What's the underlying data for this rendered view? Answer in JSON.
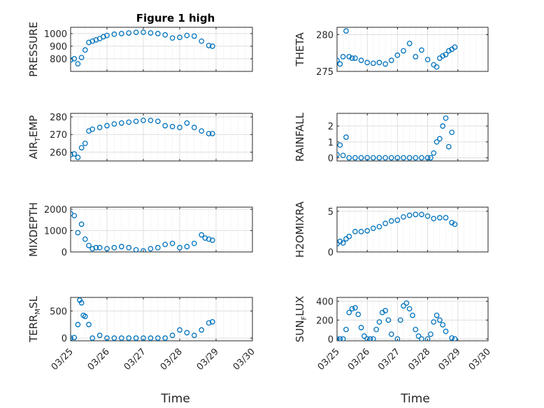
{
  "figure": {
    "title": "Figure 1 high",
    "xlabel": "Time",
    "marker_color": "#0072bd",
    "axes_color": "#262626",
    "grid_color": "#dfdfdf"
  },
  "chart_data": [
    {
      "type": "scatter",
      "ylabel": "PRESSURE",
      "xlim": [
        "03/25",
        "03/30"
      ],
      "xticks": [
        "03/25",
        "03/26",
        "03/27",
        "03/28",
        "03/29",
        "03/30"
      ],
      "ylim": [
        700,
        1050
      ],
      "yticks": [
        800,
        900,
        1000
      ],
      "x_days": [
        0.0,
        0.1,
        0.2,
        0.3,
        0.4,
        0.5,
        0.6,
        0.7,
        0.8,
        0.9,
        1.0,
        1.2,
        1.4,
        1.6,
        1.8,
        2.0,
        2.2,
        2.4,
        2.6,
        2.8,
        3.0,
        3.2,
        3.4,
        3.6,
        3.8,
        3.9
      ],
      "y": [
        790,
        800,
        760,
        810,
        870,
        930,
        940,
        950,
        960,
        975,
        985,
        995,
        1000,
        1005,
        1010,
        1010,
        1005,
        1000,
        990,
        965,
        970,
        985,
        980,
        940,
        905,
        900
      ]
    },
    {
      "type": "scatter",
      "ylabel": "THETA",
      "xlim": [
        "03/25",
        "03/30"
      ],
      "xticks": [
        "03/25",
        "03/26",
        "03/27",
        "03/28",
        "03/29",
        "03/30"
      ],
      "ylim": [
        275,
        281
      ],
      "yticks": [
        275,
        280
      ],
      "x_days": [
        0.0,
        0.1,
        0.2,
        0.3,
        0.4,
        0.5,
        0.6,
        0.8,
        1.0,
        1.2,
        1.4,
        1.6,
        1.8,
        2.0,
        2.2,
        2.4,
        2.6,
        2.8,
        3.0,
        3.2,
        3.3,
        3.4,
        3.5,
        3.6,
        3.7,
        3.8,
        3.9
      ],
      "y": [
        276.5,
        276.0,
        277.0,
        280.5,
        277.0,
        276.8,
        276.8,
        276.5,
        276.2,
        276.1,
        276.2,
        276.0,
        276.5,
        277.2,
        277.8,
        278.8,
        277.0,
        277.9,
        276.6,
        275.9,
        275.6,
        276.8,
        277.1,
        277.3,
        277.8,
        278.0,
        278.3
      ]
    },
    {
      "type": "scatter",
      "ylabel": "AIR",
      "ylabel_sub": "T",
      "ylabel_suffix": "EMP",
      "xlim": [
        "03/25",
        "03/30"
      ],
      "xticks": [
        "03/25",
        "03/26",
        "03/27",
        "03/28",
        "03/29",
        "03/30"
      ],
      "ylim": [
        255,
        282
      ],
      "yticks": [
        260,
        270,
        280
      ],
      "x_days": [
        0.0,
        0.1,
        0.2,
        0.3,
        0.4,
        0.5,
        0.6,
        0.8,
        1.0,
        1.2,
        1.4,
        1.6,
        1.8,
        2.0,
        2.2,
        2.4,
        2.6,
        2.8,
        3.0,
        3.2,
        3.4,
        3.6,
        3.8,
        3.9
      ],
      "y": [
        258.5,
        259.0,
        257.0,
        262.5,
        265.0,
        272.0,
        273.0,
        274.0,
        275.0,
        276.0,
        276.5,
        277.0,
        277.5,
        278.0,
        278.0,
        277.5,
        275.0,
        274.5,
        274.0,
        276.5,
        274.0,
        272.0,
        270.5,
        270.5
      ]
    },
    {
      "type": "scatter",
      "ylabel": "RAINFALL",
      "xlim": [
        "03/25",
        "03/30"
      ],
      "xticks": [
        "03/25",
        "03/26",
        "03/27",
        "03/28",
        "03/29",
        "03/30"
      ],
      "ylim": [
        -0.2,
        2.8
      ],
      "yticks": [
        0,
        1,
        2
      ],
      "x_days": [
        0.0,
        0.1,
        0.2,
        0.3,
        0.4,
        0.6,
        0.8,
        1.0,
        1.2,
        1.4,
        1.6,
        1.8,
        2.0,
        2.2,
        2.4,
        2.6,
        2.8,
        3.0,
        3.1,
        3.2,
        3.3,
        3.4,
        3.5,
        3.6,
        3.7,
        3.8
      ],
      "y": [
        0.2,
        0.8,
        0.15,
        1.3,
        0.0,
        0.0,
        0.0,
        0.0,
        0.0,
        0.0,
        0.0,
        0.0,
        0.0,
        0.0,
        0.0,
        0.0,
        0.0,
        0.0,
        0.0,
        0.3,
        1.0,
        1.2,
        2.0,
        2.5,
        0.7,
        1.6
      ]
    },
    {
      "type": "scatter",
      "ylabel": "MIXDEPTH",
      "xlim": [
        "03/25",
        "03/30"
      ],
      "xticks": [
        "03/25",
        "03/26",
        "03/27",
        "03/28",
        "03/29",
        "03/30"
      ],
      "ylim": [
        0,
        2100
      ],
      "yticks": [
        0,
        1000,
        2000
      ],
      "x_days": [
        0.0,
        0.1,
        0.2,
        0.3,
        0.4,
        0.5,
        0.6,
        0.7,
        0.8,
        1.0,
        1.2,
        1.4,
        1.6,
        1.8,
        2.0,
        2.2,
        2.4,
        2.6,
        2.8,
        3.0,
        3.2,
        3.4,
        3.6,
        3.7,
        3.8,
        3.9
      ],
      "y": [
        1800,
        1700,
        900,
        1300,
        600,
        300,
        150,
        200,
        200,
        150,
        200,
        250,
        200,
        100,
        50,
        150,
        200,
        350,
        400,
        200,
        250,
        400,
        800,
        650,
        600,
        550
      ]
    },
    {
      "type": "scatter",
      "ylabel": "H2OMIXRA",
      "xlim": [
        "03/25",
        "03/30"
      ],
      "xticks": [
        "03/25",
        "03/26",
        "03/27",
        "03/28",
        "03/29",
        "03/30"
      ],
      "ylim": [
        0,
        5.5
      ],
      "yticks": [
        0,
        5
      ],
      "x_days": [
        0.0,
        0.1,
        0.2,
        0.3,
        0.4,
        0.6,
        0.8,
        1.0,
        1.2,
        1.4,
        1.6,
        1.8,
        2.0,
        2.2,
        2.4,
        2.6,
        2.8,
        3.0,
        3.2,
        3.4,
        3.6,
        3.8,
        3.9
      ],
      "y": [
        1.0,
        1.3,
        1.1,
        1.6,
        1.9,
        2.5,
        2.5,
        2.6,
        2.9,
        3.1,
        3.5,
        3.8,
        3.9,
        4.3,
        4.5,
        4.6,
        4.6,
        4.4,
        4.1,
        4.2,
        4.2,
        3.6,
        3.4
      ]
    },
    {
      "type": "scatter",
      "ylabel": "TERR",
      "ylabel_sub": "M",
      "ylabel_suffix": "SL",
      "xlim": [
        "03/25",
        "03/30"
      ],
      "xticks": [
        "03/25",
        "03/26",
        "03/27",
        "03/28",
        "03/29",
        "03/30"
      ],
      "ylim": [
        -50,
        750
      ],
      "yticks": [
        0,
        500
      ],
      "x_days": [
        0.0,
        0.1,
        0.2,
        0.25,
        0.3,
        0.35,
        0.4,
        0.5,
        0.6,
        0.8,
        1.0,
        1.2,
        1.4,
        1.6,
        1.8,
        2.0,
        2.2,
        2.4,
        2.6,
        2.8,
        3.0,
        3.2,
        3.4,
        3.6,
        3.8,
        3.9
      ],
      "y": [
        0,
        10,
        250,
        700,
        650,
        420,
        400,
        250,
        0,
        50,
        0,
        0,
        0,
        0,
        0,
        0,
        0,
        0,
        0,
        50,
        150,
        100,
        50,
        150,
        280,
        300
      ]
    },
    {
      "type": "scatter",
      "ylabel": "SUN",
      "ylabel_sub": "F",
      "ylabel_suffix": "LUX",
      "xlim": [
        "03/25",
        "03/30"
      ],
      "xticks": [
        "03/25",
        "03/26",
        "03/27",
        "03/28",
        "03/29",
        "03/30"
      ],
      "ylim": [
        -20,
        440
      ],
      "yticks": [
        0,
        200,
        400
      ],
      "x_days": [
        0.0,
        0.1,
        0.2,
        0.3,
        0.4,
        0.5,
        0.6,
        0.7,
        0.8,
        0.9,
        1.0,
        1.1,
        1.2,
        1.3,
        1.4,
        1.5,
        1.6,
        1.7,
        1.8,
        2.0,
        2.1,
        2.2,
        2.3,
        2.4,
        2.5,
        2.6,
        2.7,
        2.8,
        3.0,
        3.1,
        3.2,
        3.3,
        3.4,
        3.5,
        3.6,
        3.8,
        3.9
      ],
      "y": [
        0,
        0,
        0,
        100,
        280,
        320,
        330,
        260,
        120,
        30,
        0,
        0,
        0,
        100,
        180,
        280,
        300,
        200,
        50,
        0,
        200,
        350,
        380,
        320,
        250,
        100,
        30,
        0,
        0,
        50,
        180,
        250,
        200,
        150,
        80,
        10,
        0
      ]
    }
  ]
}
